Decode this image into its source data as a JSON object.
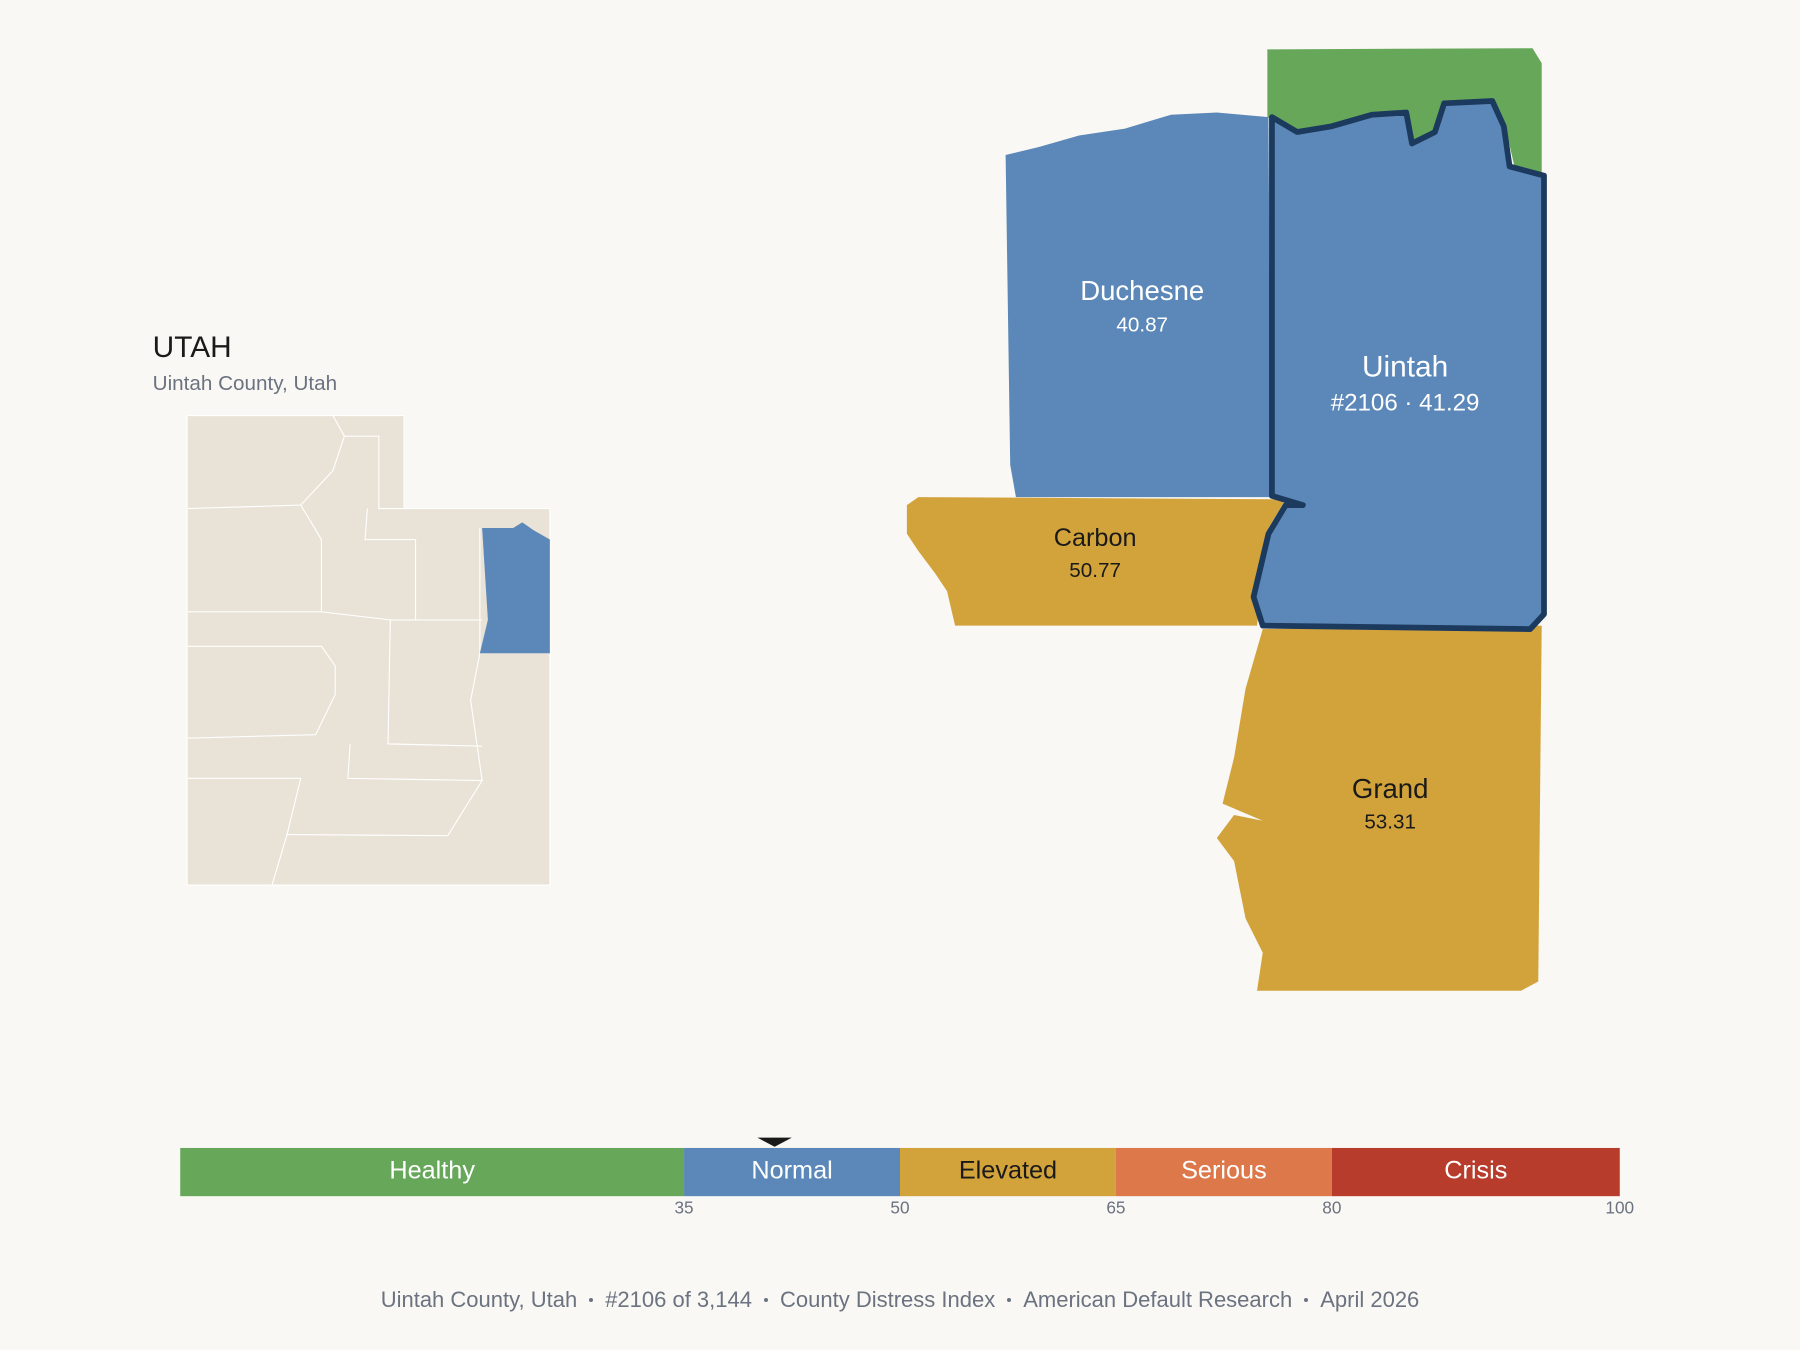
{
  "header": {
    "title": "UTAH",
    "subtitle": "Uintah County, Utah"
  },
  "counties": [
    {
      "name": "Duchesne",
      "detail": "40.87",
      "color": "#5b88b8",
      "text_color": "#ffffff"
    },
    {
      "name": "Uintah",
      "detail": "#2106 · 41.29",
      "color": "#5b88b8",
      "text_color": "#ffffff"
    },
    {
      "name": "Carbon",
      "detail": "50.77",
      "color": "#d2a33b",
      "text_color": "#1a1a1a"
    },
    {
      "name": "Grand",
      "detail": "53.31",
      "color": "#d2a33b",
      "text_color": "#1a1a1a"
    }
  ],
  "scale": {
    "min": 0,
    "max": 100,
    "ticks": [
      35,
      50,
      65,
      80,
      100
    ],
    "marker": 41.29,
    "bands": [
      {
        "label": "Healthy",
        "color": "#67a75a",
        "text_color": "#ffffff"
      },
      {
        "label": "Normal",
        "color": "#5b88b8",
        "text_color": "#ffffff"
      },
      {
        "label": "Elevated",
        "color": "#d2a33b",
        "text_color": "#1a1a1a"
      },
      {
        "label": "Serious",
        "color": "#dc7849",
        "text_color": "#ffffff"
      },
      {
        "label": "Crisis",
        "color": "#b83c2c",
        "text_color": "#ffffff"
      }
    ]
  },
  "footer": [
    "Uintah County, Utah",
    "#2106 of 3,144",
    "County Distress Index",
    "American Default Research",
    "April 2026"
  ]
}
